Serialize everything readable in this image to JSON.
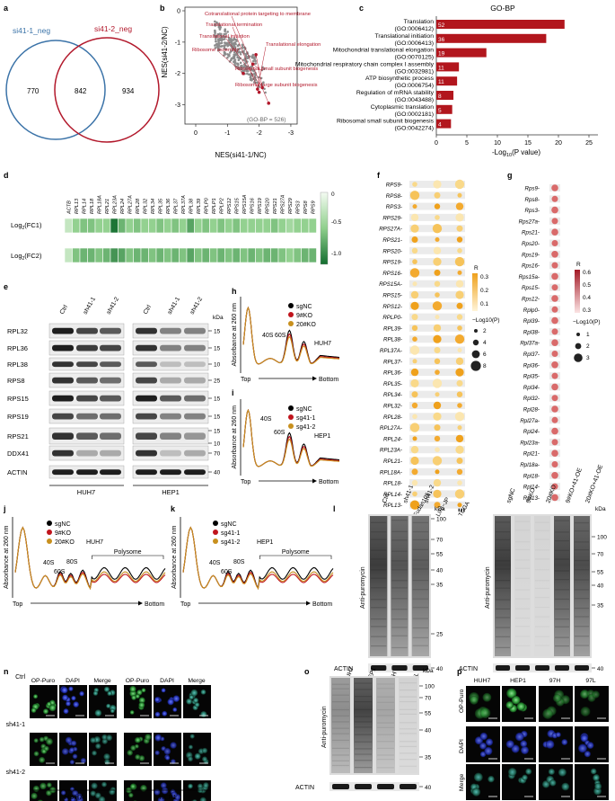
{
  "panels": {
    "a": "a",
    "b": "b",
    "c": "c",
    "d": "d",
    "e": "e",
    "f": "f",
    "g": "g",
    "h": "h",
    "i": "i",
    "j": "j",
    "k": "k",
    "l": "l",
    "m": "m",
    "n": "n",
    "o": "o",
    "p": "p"
  },
  "venn": {
    "set1": "si41-1_neg",
    "set2": "si41-2_neg",
    "only1": "770",
    "both": "842",
    "only2": "934",
    "set1_color": "#3b73a8",
    "set2_color": "#b2182b"
  },
  "scatter": {
    "ylabel": "NES(si41-2/NC)",
    "xlabel": "NES(si41-1/NC)",
    "note": "(GO-BP = 526)",
    "xticks": [
      "0",
      "-1",
      "-2",
      "-3"
    ],
    "yticks": [
      "0",
      "-1",
      "-2",
      "-3"
    ],
    "labels": [
      "Cotranslational protein targeting to membrane",
      "Translational termination",
      "Translational initiation",
      "Translational elongation",
      "Ribosome assembly",
      "Ribosomal small subunit biogenesis",
      "Ribosomal large subunit biogenesis"
    ],
    "xlim": [
      0,
      -3.2
    ],
    "ylim": [
      0,
      -3.5
    ]
  },
  "gobp": {
    "title": "GO-BP",
    "xlabel_pre": "-Log",
    "xlabel_sub": "10",
    "xlabel_post": "(P value)",
    "xticks": [
      "0",
      "5",
      "10",
      "15",
      "20",
      "25"
    ],
    "terms": [
      {
        "name": "Translation",
        "id": "(GO:0006412)",
        "count": "52",
        "p": 21
      },
      {
        "name": "Translational initiation",
        "id": "(GO:0006413)",
        "count": "36",
        "p": 18
      },
      {
        "name": "Mitochondrial translational elongation",
        "id": "(GO:0070125)",
        "count": "19",
        "p": 8.2
      },
      {
        "name": "Mitochondrial respiratory chain complex I assembly",
        "id": "(GO:0032981)",
        "count": "11",
        "p": 3.7
      },
      {
        "name": "ATP biosynthetic process",
        "id": "(GO:0006754)",
        "count": "11",
        "p": 3.4
      },
      {
        "name": "Regulation of mRNA stability",
        "id": "(GO:0043488)",
        "count": "8",
        "p": 2.8
      },
      {
        "name": "Cytoplasmic translation",
        "id": "(GO:0002181)",
        "count": "5",
        "p": 2.6
      },
      {
        "name": "Ribosomal small subunit biogenesis",
        "id": "(GO:0042274)",
        "count": "4",
        "p": 2.4
      }
    ],
    "bar_color": "#b2161d"
  },
  "heatmap": {
    "genes": [
      "ACTB",
      "RPL13",
      "RPL14",
      "RPL18",
      "RPL18A",
      "RPL21",
      "RPL23A",
      "RPL24",
      "RPL27A",
      "RPL28",
      "RPL32",
      "RPL34",
      "RPL35",
      "RPL36",
      "RPL37",
      "RPL37A",
      "RPL38",
      "RPL39",
      "RPLP0",
      "RPLP1",
      "RPLP2",
      "RPS12",
      "RPS15",
      "RPS15A",
      "RPS16",
      "RPS19",
      "RPS20",
      "RPS21",
      "RPS27A",
      "RPS29",
      "RPS3",
      "RPS8",
      "RPS9"
    ],
    "rows": [
      "Log2(FC1)",
      "Log2(FC2)"
    ],
    "row_pre": "Log",
    "row_sub": "2",
    "row_post": [
      "(FC1)",
      "(FC2)"
    ],
    "fc1": [
      -0.3,
      -0.6,
      -0.7,
      -0.7,
      -0.6,
      -0.6,
      -1.2,
      -0.8,
      -0.6,
      -0.7,
      -0.6,
      -0.6,
      -0.7,
      -0.6,
      -0.7,
      -0.6,
      -0.9,
      -0.6,
      -0.7,
      -0.6,
      -0.7,
      -0.6,
      -0.7,
      -0.6,
      -0.6,
      -0.6,
      -0.6,
      -0.7,
      -0.6,
      -0.5,
      -0.6,
      -0.6,
      -0.6
    ],
    "fc2": [
      -0.3,
      -0.7,
      -0.8,
      -0.8,
      -0.7,
      -0.8,
      -1.0,
      -0.9,
      -0.7,
      -0.8,
      -0.8,
      -0.7,
      -0.8,
      -0.7,
      -0.8,
      -0.7,
      -0.9,
      -0.7,
      -0.8,
      -0.7,
      -0.8,
      -0.7,
      -0.8,
      -0.7,
      -0.8,
      -0.7,
      -0.8,
      -0.8,
      -0.7,
      -0.6,
      -0.7,
      -0.8,
      -0.8
    ],
    "scale": [
      "0",
      "-0.5",
      "-1.0"
    ]
  },
  "westernE": {
    "cols1": [
      "Ctrl",
      "sh41-1",
      "sh41-2"
    ],
    "cols2": [
      "Ctrl",
      "sh41-1",
      "sh41-2"
    ],
    "kda": "kDa",
    "rows": [
      {
        "name": "RPL32",
        "mw": [
          "15"
        ]
      },
      {
        "name": "RPL36",
        "mw": [
          "15"
        ]
      },
      {
        "name": "RPL38",
        "mw": [
          "10"
        ]
      },
      {
        "name": "RPS8",
        "mw": [
          "25"
        ]
      },
      {
        "name": "RPS15",
        "mw": [
          "15"
        ]
      },
      {
        "name": "RPS19",
        "mw": [
          "15"
        ]
      },
      {
        "name": "RPS21",
        "mw": [
          "15",
          "10"
        ]
      },
      {
        "name": "DDX41",
        "mw": [
          "70"
        ]
      },
      {
        "name": "ACTIN",
        "mw": [
          "40"
        ]
      }
    ],
    "cell1": "HUH7",
    "cell2": "HEP1"
  },
  "profileH": {
    "ylabel": "Absorbance at 260 nm",
    "legend": [
      "sgNC",
      "9#KO",
      "20#KO"
    ],
    "cell": "HUH7",
    "p1": "40S",
    "p2": "60S",
    "top": "Top",
    "bottom": "Bottom"
  },
  "profileI": {
    "ylabel": "Absorbance at 260 nm",
    "legend": [
      "sgNC",
      "sg41-1",
      "sg41-2"
    ],
    "cell": "HEP1",
    "p1": "40S",
    "p2": "60S",
    "top": "Top",
    "bottom": "Bottom"
  },
  "profileJ": {
    "ylabel": "Absorbance at 260 nm",
    "legend": [
      "sgNC",
      "9#KO",
      "20#KO"
    ],
    "cell": "HUH7",
    "p1": "40S",
    "p2": "60S",
    "p3": "80S",
    "poly": "Polysome",
    "top": "Top",
    "bottom": "Bottom"
  },
  "profileK": {
    "ylabel": "Absorbance at 260 nm",
    "legend": [
      "sgNC",
      "sg41-1",
      "sg41-2"
    ],
    "cell": "HEP1",
    "p1": "40S",
    "p2": "60S",
    "p3": "80S",
    "poly": "Polysome",
    "top": "Top",
    "bottom": "Bottom"
  },
  "legend_colors": [
    "#000000",
    "#c0141c",
    "#c8901e"
  ],
  "dotF": {
    "genes": [
      "RPS9",
      "RPS8",
      "RPS3",
      "RPS29",
      "RPS27A",
      "RPS21",
      "RPS20",
      "RPS19",
      "RPS16",
      "RPS15A",
      "RPS15",
      "RPS12",
      "RPLP0",
      "RPL39",
      "RPL38",
      "RPL37A",
      "RPL37",
      "RPL36",
      "RPL35",
      "RPL34",
      "RPL32",
      "RPL28",
      "RPL27A",
      "RPL24",
      "RPL23A",
      "RPL21",
      "RPL18A",
      "RPL18",
      "RPL14",
      "RPL13"
    ],
    "cols": [
      "Fudan105",
      "LIRI−JP",
      "TCGA"
    ],
    "legend_r": "R",
    "r_ticks": [
      "0.3",
      "0.2",
      "0.1"
    ],
    "legend_p": "−Log10(P)",
    "p_ticks": [
      "2",
      "4",
      "6",
      "8"
    ]
  },
  "dotG": {
    "genes": [
      "Rps9",
      "Rps8",
      "Rps3",
      "Rps27a",
      "Rps21",
      "Rps20",
      "Rps19",
      "Rps16",
      "Rps15a",
      "Rps15",
      "Rps12",
      "Rplp0",
      "Rpl39",
      "Rpl38",
      "Rpl37a",
      "Rpl37",
      "Rpl36",
      "Rpl35",
      "Rpl34",
      "Rpl32",
      "Rpl28",
      "Rpl27a",
      "Rpl24",
      "Rpl23a",
      "Rpl21",
      "Rpl18a",
      "Rpl18",
      "Rpl14",
      "Rpl13"
    ],
    "col": "Mouse model",
    "legend_r": "R",
    "r_ticks": [
      "0.6",
      "0.5",
      "0.4",
      "0.3"
    ],
    "legend_p": "−Log10(P)",
    "p_ticks": [
      "1",
      "2",
      "3"
    ]
  },
  "blotL": {
    "cols": [
      "Ctrl",
      "sh41-1",
      "sh41-2"
    ],
    "ylabel": "Anti-puromycin",
    "loading": "ACTIN",
    "kda": "kDa",
    "mw": [
      "100",
      "70",
      "55",
      "40",
      "35",
      "25"
    ],
    "actin_mw": "40"
  },
  "blotM": {
    "cols": [
      "sgNC",
      "9#KO",
      "20#KO",
      "9#KO+41-OE",
      "20#KO+41-OE"
    ],
    "ylabel": "Anti-puromycin",
    "loading": "ACTIN",
    "kda": "kDa",
    "mw": [
      "100",
      "70",
      "55",
      "40",
      "35"
    ],
    "actin_mw": "40"
  },
  "imagingN": {
    "cols": [
      "OP-Puro",
      "DAPI",
      "Merge",
      "OP-Puro",
      "DAPI",
      "Merge"
    ],
    "rows": [
      "Ctrl",
      "sh41-1",
      "sh41-2"
    ],
    "cell1": "HUH7",
    "cell2": "HEP1"
  },
  "blotO": {
    "cols": [
      "HUH7",
      "HEP1",
      "97H",
      "97L"
    ],
    "ylabel": "Anti-puromycin",
    "loading": "ACTIN",
    "kda": "kDa",
    "mw": [
      "100",
      "70",
      "55",
      "40",
      "35"
    ],
    "actin_mw": "40"
  },
  "imagingP": {
    "cols": [
      "HUH7",
      "HEP1",
      "97H",
      "97L"
    ],
    "rows": [
      "OP-Puro",
      "DAPI",
      "Merge"
    ]
  }
}
